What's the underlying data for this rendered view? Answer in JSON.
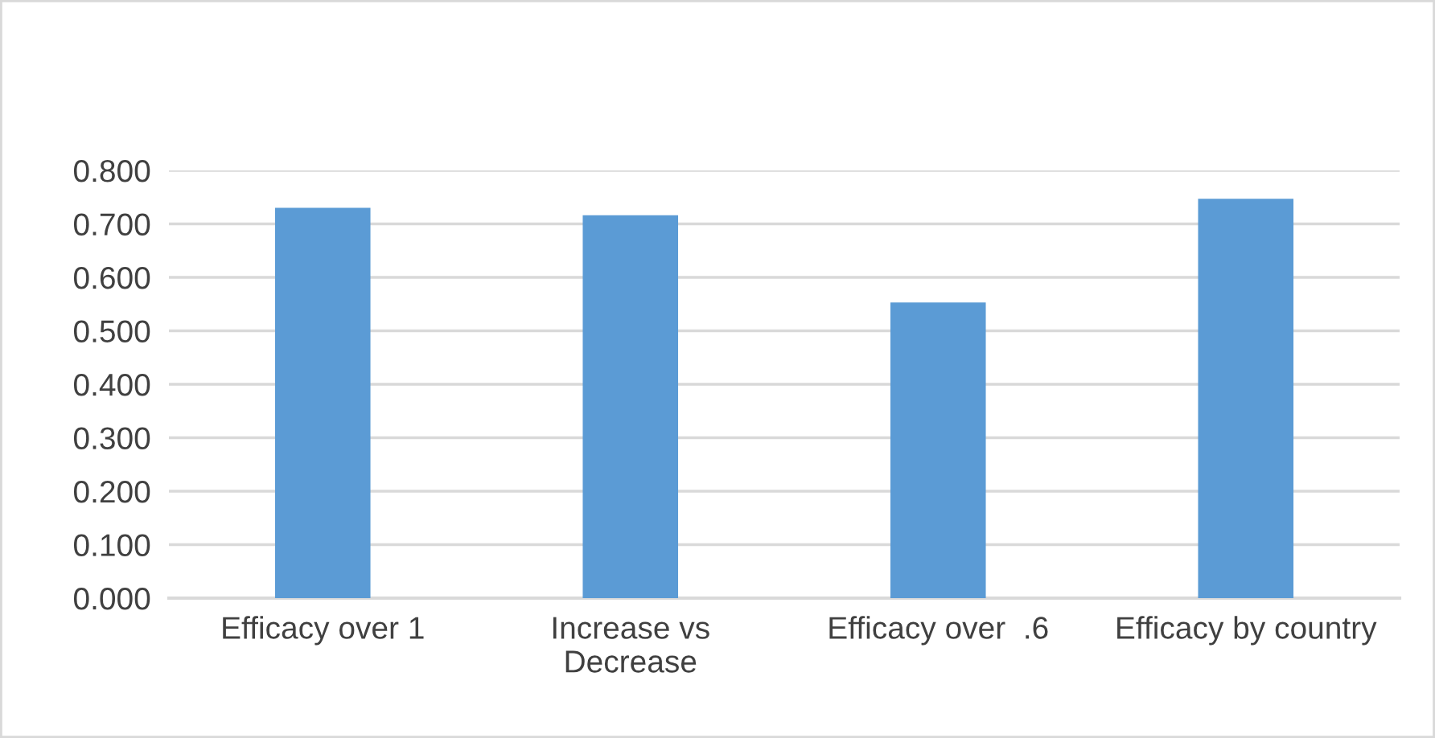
{
  "chart_data": {
    "type": "bar",
    "categories": [
      "Efficacy over 1",
      "Increase vs\nDecrease",
      "Efficacy over  .6",
      "Efficacy by country"
    ],
    "values": [
      0.73,
      0.716,
      0.553,
      0.747
    ],
    "color": "#5b9bd5",
    "ylim": [
      0,
      0.8
    ],
    "yticks": [
      {
        "value": 0,
        "label": "0.000"
      },
      {
        "value": 0.1,
        "label": "0.100"
      },
      {
        "value": 0.2,
        "label": "0.200"
      },
      {
        "value": 0.3,
        "label": "0.300"
      },
      {
        "value": 0.4,
        "label": "0.400"
      },
      {
        "value": 0.5,
        "label": "0.500"
      },
      {
        "value": 0.6,
        "label": "0.600"
      },
      {
        "value": 0.7,
        "label": "0.700"
      },
      {
        "value": 0.8,
        "label": "0.800"
      }
    ],
    "grid": "y",
    "legend": false
  }
}
